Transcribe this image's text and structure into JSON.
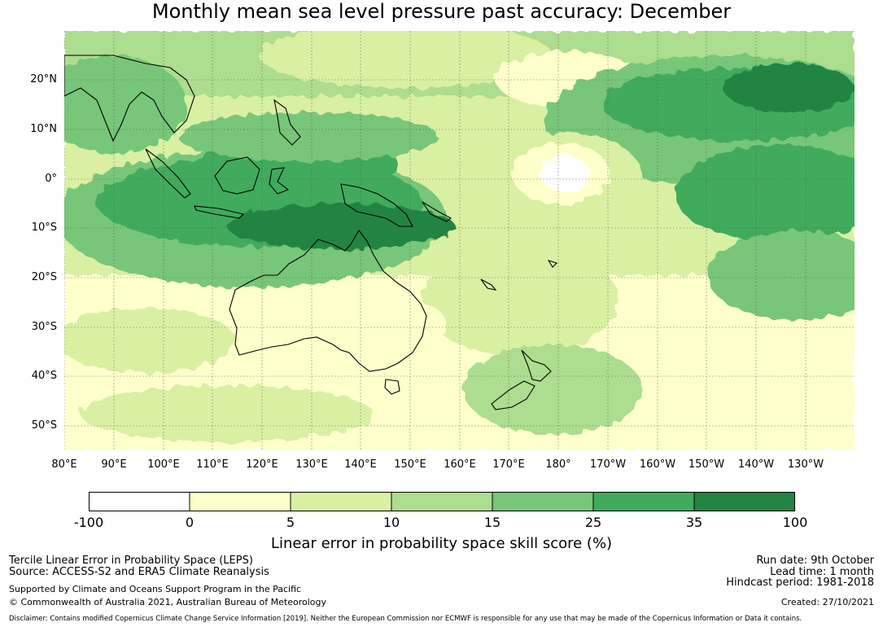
{
  "title": "Monthly mean sea level pressure past accuracy: December",
  "map": {
    "lat_labels": [
      "20°N",
      "10°N",
      "0°",
      "10°S",
      "20°S",
      "30°S",
      "40°S",
      "50°S"
    ],
    "lon_labels": [
      "80°E",
      "90°E",
      "100°E",
      "110°E",
      "120°E",
      "130°E",
      "140°E",
      "150°E",
      "160°E",
      "170°E",
      "180°",
      "170°W",
      "160°W",
      "150°W",
      "140°W",
      "130°W"
    ]
  },
  "colors": {
    "c0": "#ffffff",
    "c1": "#ffffcc",
    "c2": "#d9f0a3",
    "c3": "#addd8e",
    "c4": "#78c679",
    "c5": "#41ab5d",
    "c6": "#238443"
  },
  "colorbar": {
    "ticks": [
      "-100",
      "0",
      "5",
      "10",
      "15",
      "25",
      "35",
      "100"
    ],
    "label": "Linear error in probability space skill score (%)"
  },
  "footer": {
    "method": "Tercile Linear Error in Probability Space (LEPS)",
    "source": "Source: ACCESS-S2 and ERA5 Climate Reanalysis",
    "support": "Supported by Climate and Oceans Support Program in the Pacific",
    "copyright": "© Commonwealth of Australia 2021, Australian Bureau of Meteorology",
    "run_date": "Run date: 9th October",
    "lead_time": "Lead time: 1 month",
    "hindcast": "Hindcast period: 1981-2018",
    "created": "Created: 27/10/2021",
    "disclaimer": "Disclaimer: Contains modified Copernicus Climate Change Service Information [2019]. Neither the European Commission nor ECMWF is responsible for any use that may be made of the Copernicus Information or Data it contains."
  }
}
